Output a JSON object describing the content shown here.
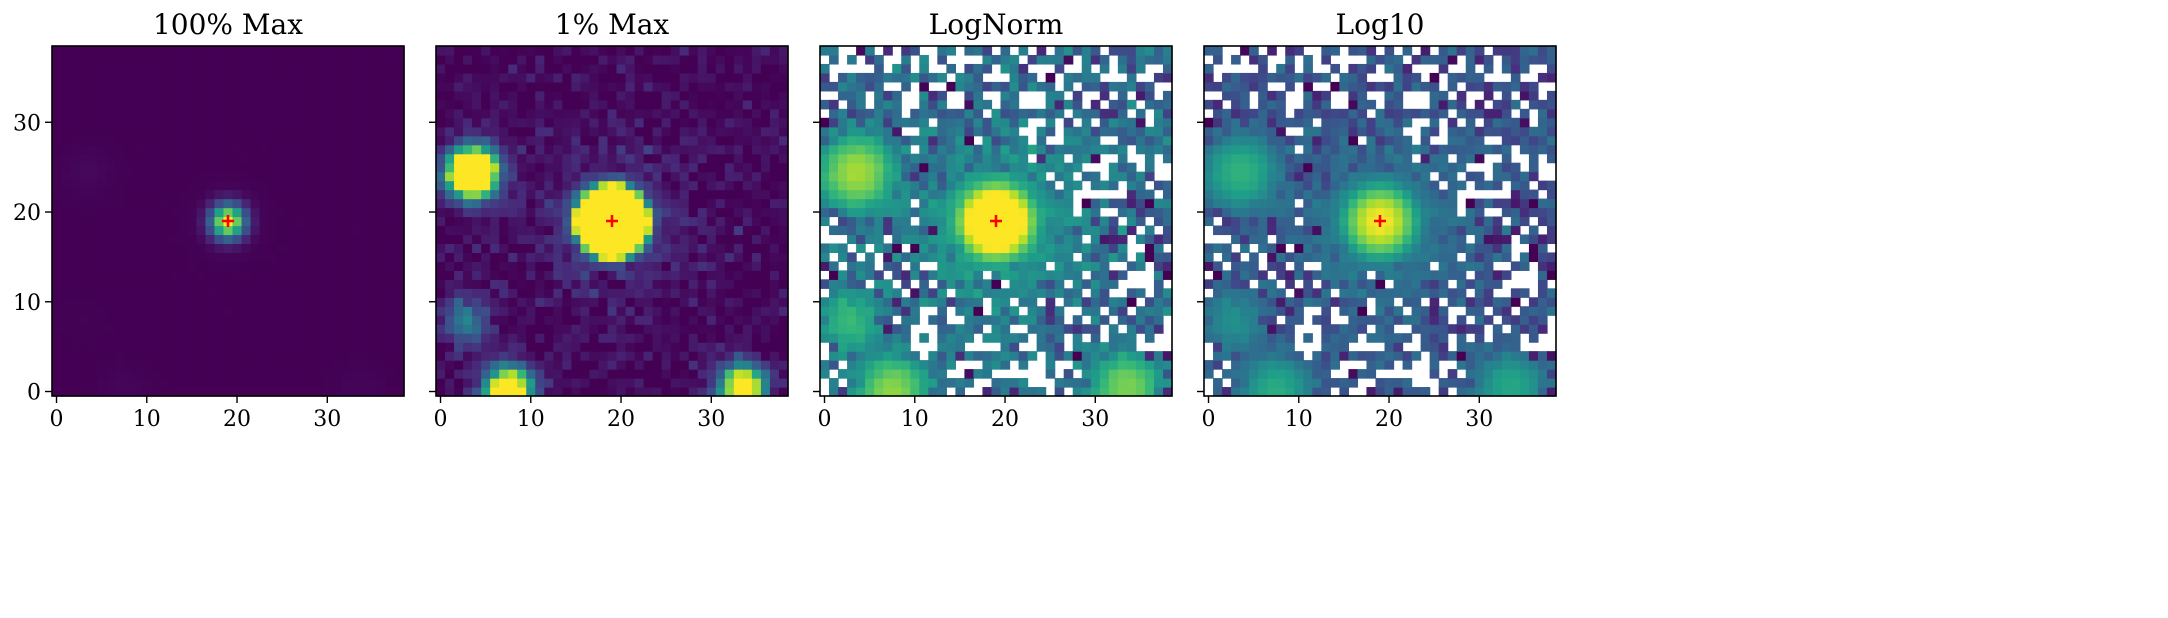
{
  "figure": {
    "domain": "Chart",
    "colormap": "viridis",
    "marker_color": "#ff0000"
  },
  "chart_data": [
    {
      "type": "heatmap",
      "title": "100% Max",
      "xlabel": "",
      "ylabel": "",
      "xlim": [
        -0.5,
        38.5
      ],
      "ylim": [
        -0.5,
        38.5
      ],
      "xticks": [
        0,
        10,
        20,
        30
      ],
      "yticks": [
        0,
        10,
        20,
        30
      ],
      "show_yticklabels": true,
      "scale": "linear-100pct",
      "marker": {
        "x": 19,
        "y": 19,
        "symbol": "+"
      }
    },
    {
      "type": "heatmap",
      "title": "1% Max",
      "xlabel": "",
      "ylabel": "",
      "xlim": [
        -0.5,
        38.5
      ],
      "ylim": [
        -0.5,
        38.5
      ],
      "xticks": [
        0,
        10,
        20,
        30
      ],
      "yticks": [
        0,
        10,
        20,
        30
      ],
      "show_yticklabels": false,
      "scale": "linear-1pct",
      "marker": {
        "x": 19,
        "y": 19,
        "symbol": "+"
      }
    },
    {
      "type": "heatmap",
      "title": "LogNorm",
      "xlabel": "",
      "ylabel": "",
      "xlim": [
        -0.5,
        38.5
      ],
      "ylim": [
        -0.5,
        38.5
      ],
      "xticks": [
        0,
        10,
        20,
        30
      ],
      "yticks": [
        0,
        10,
        20,
        30
      ],
      "show_yticklabels": false,
      "scale": "lognorm",
      "marker": {
        "x": 19,
        "y": 19,
        "symbol": "+"
      }
    },
    {
      "type": "heatmap",
      "title": "Log10",
      "xlabel": "",
      "ylabel": "",
      "xlim": [
        -0.5,
        38.5
      ],
      "ylim": [
        -0.5,
        38.5
      ],
      "xticks": [
        0,
        10,
        20,
        30
      ],
      "yticks": [
        0,
        10,
        20,
        30
      ],
      "show_yticklabels": false,
      "scale": "log10",
      "marker": {
        "x": 19,
        "y": 19,
        "symbol": "+"
      }
    }
  ],
  "sources": [
    {
      "x": 19,
      "y": 19,
      "amp": 1.0
    },
    {
      "x": 3.5,
      "y": 24.5,
      "amp": 0.02
    },
    {
      "x": 7.5,
      "y": 0,
      "amp": 0.015
    },
    {
      "x": 33.5,
      "y": 0.5,
      "amp": 0.012
    },
    {
      "x": 3,
      "y": 8,
      "amp": 0.004
    }
  ]
}
